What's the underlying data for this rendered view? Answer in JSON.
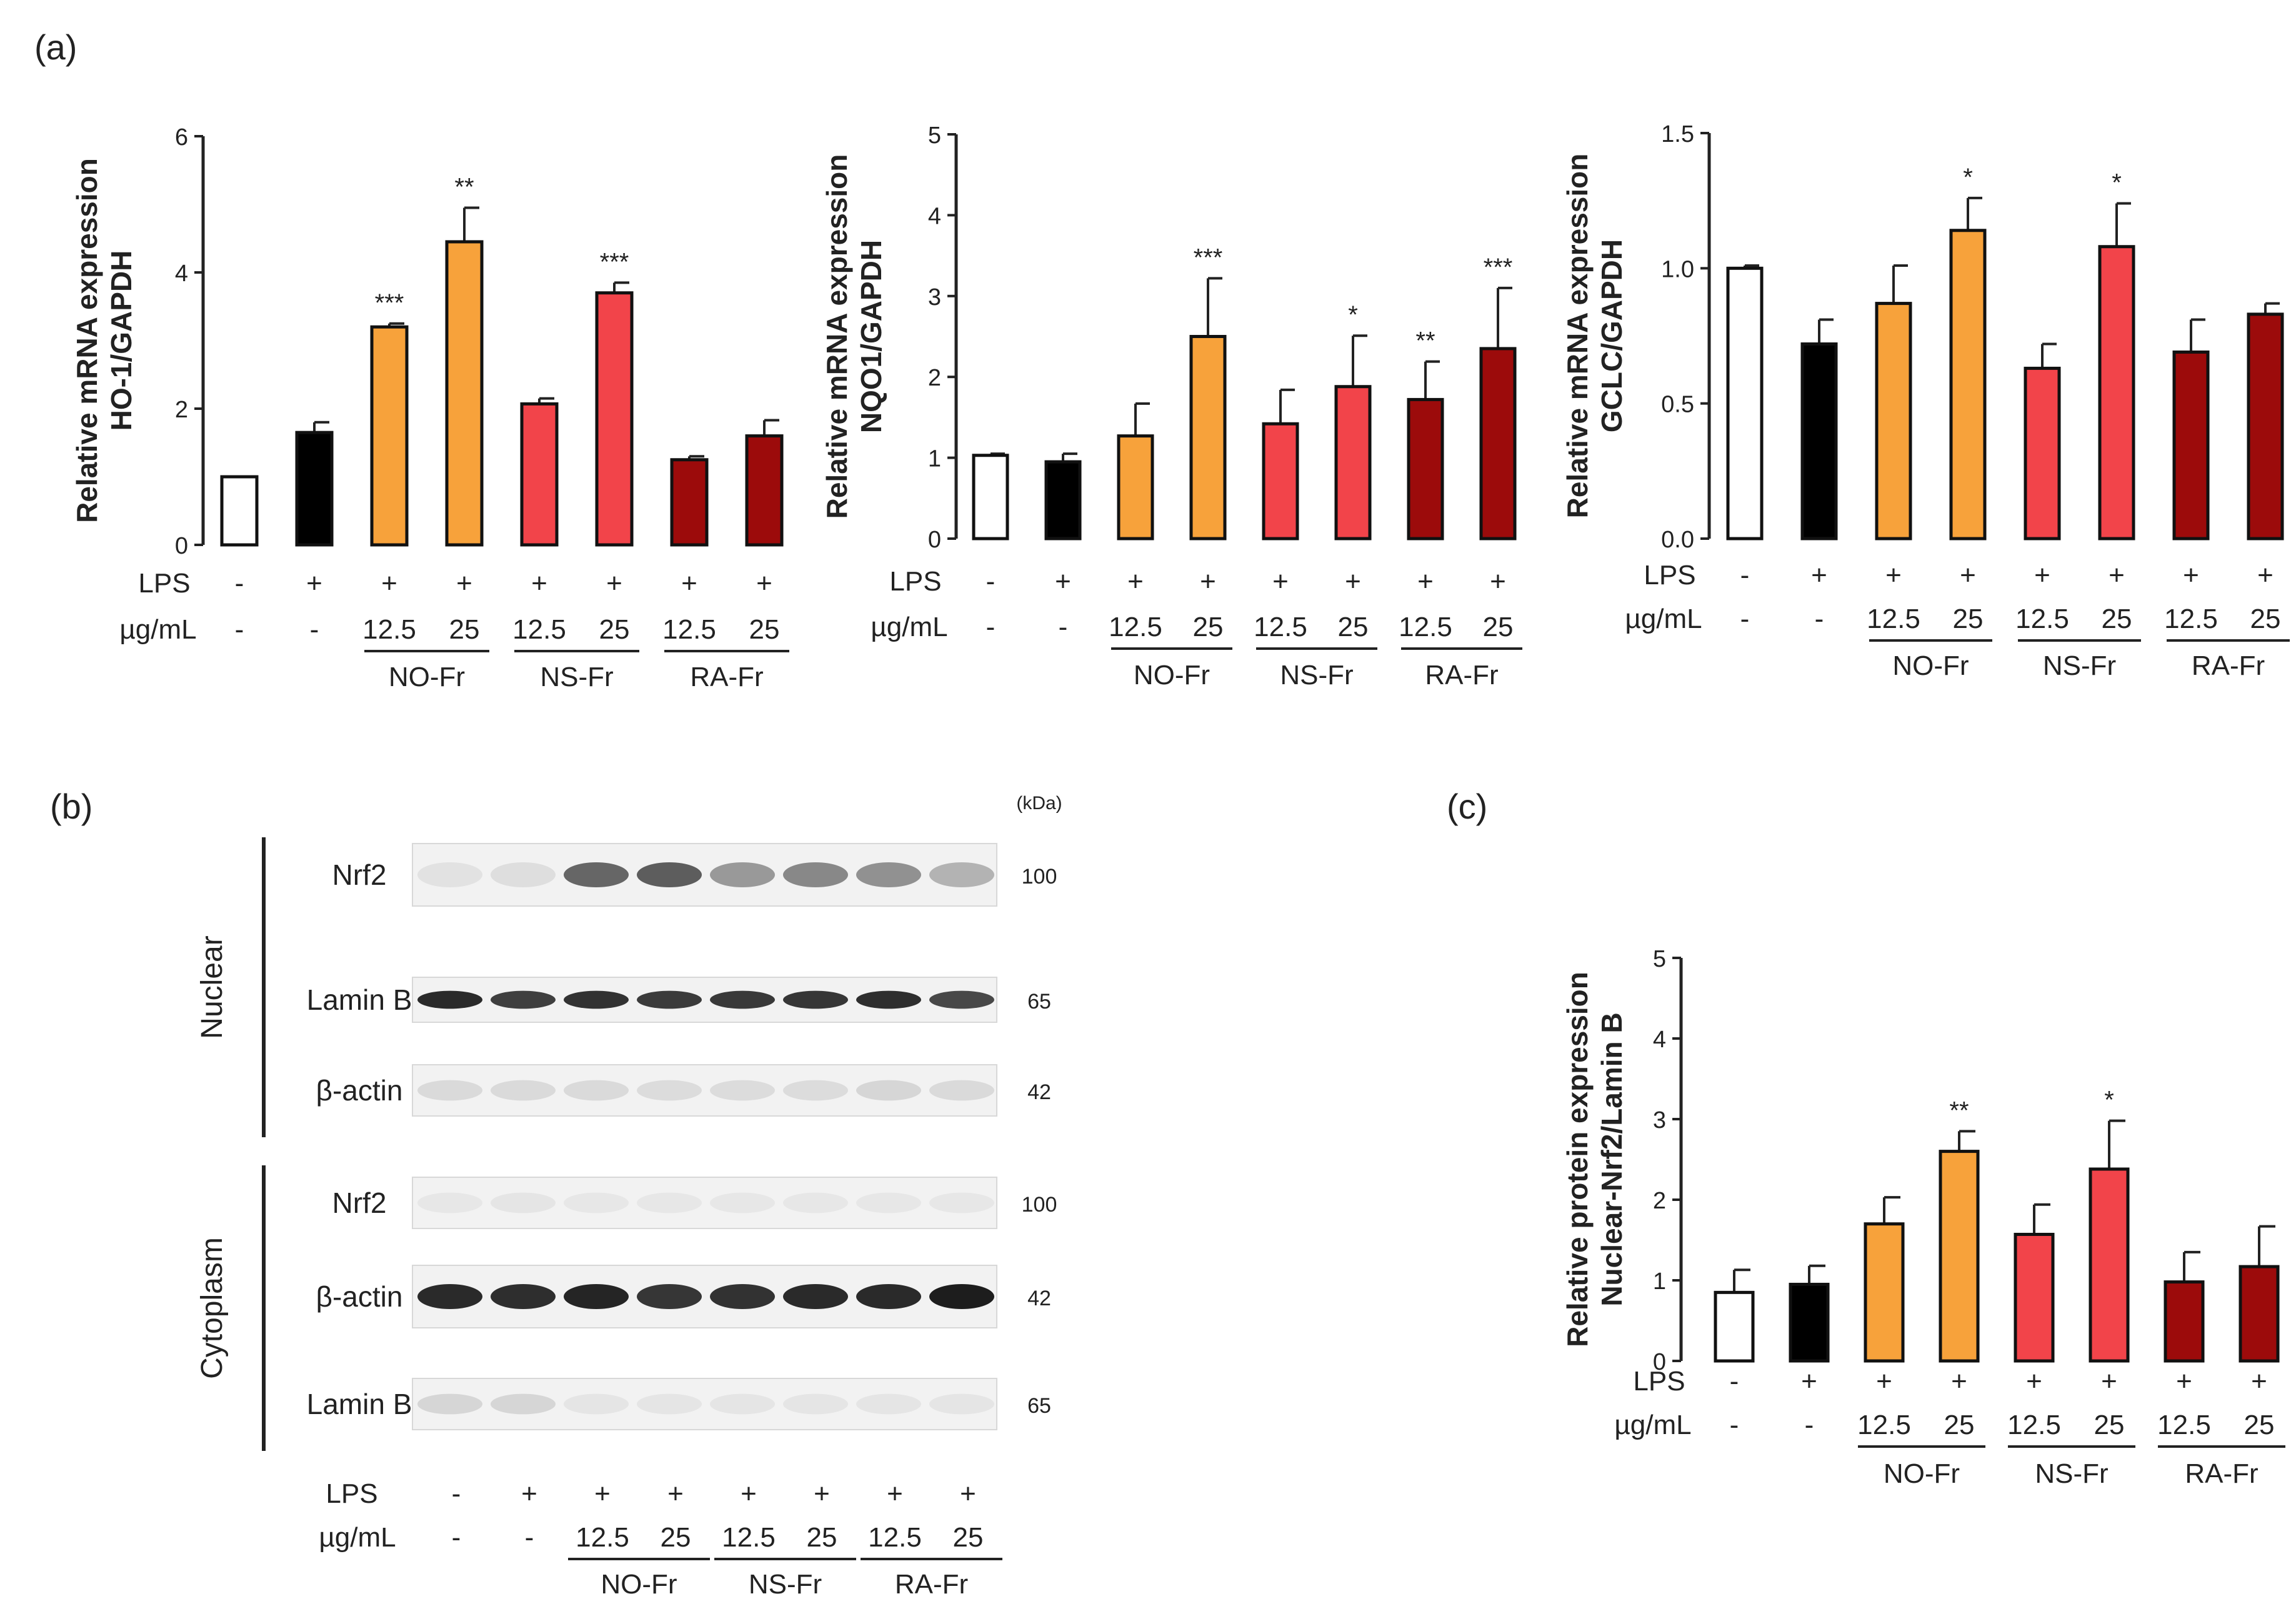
{
  "panel_labels": {
    "a": "(a)",
    "b": "(b)",
    "c": "(c)"
  },
  "colors": {
    "control": "#ffffff",
    "lps": "#000000",
    "no_fr": "#f7a23b",
    "ns_fr": "#f2444a",
    "ra_fr": "#9c0b0b"
  },
  "treatment_rows": {
    "lps_label": "LPS",
    "lps": [
      "-",
      "+",
      "+",
      "+",
      "+",
      "+",
      "+",
      "+"
    ],
    "dose_label": "µg/mL",
    "doses": [
      "-",
      "-",
      "12.5",
      "25",
      "12.5",
      "25",
      "12.5",
      "25"
    ],
    "groups": [
      "NO-Fr",
      "NS-Fr",
      "RA-Fr"
    ]
  },
  "chart_data": [
    {
      "id": "ho1",
      "type": "bar",
      "ylabel_line1": "Relative  mRNA expression",
      "ylabel_line2": "HO-1/GAPDH",
      "ylim": [
        0,
        6
      ],
      "yticks": [
        "0",
        "2",
        "4",
        "6"
      ],
      "ytick_values": [
        0,
        2,
        4,
        6
      ],
      "values": [
        1.0,
        1.65,
        3.2,
        4.45,
        2.07,
        3.7,
        1.25,
        1.6
      ],
      "errors": [
        0.0,
        0.15,
        0.05,
        0.5,
        0.08,
        0.15,
        0.05,
        0.23
      ],
      "significance": [
        "",
        "",
        "***",
        "**",
        "",
        "***",
        "",
        ""
      ]
    },
    {
      "id": "nqo1",
      "type": "bar",
      "ylabel_line1": "Relative  mRNA expression",
      "ylabel_line2": "NQO1/GAPDH",
      "ylim": [
        0,
        5
      ],
      "yticks": [
        "0",
        "1",
        "2",
        "3",
        "4",
        "5"
      ],
      "ytick_values": [
        0,
        1,
        2,
        3,
        4,
        5
      ],
      "values": [
        1.03,
        0.95,
        1.27,
        2.5,
        1.42,
        1.88,
        1.72,
        2.35
      ],
      "errors": [
        0.02,
        0.1,
        0.4,
        0.72,
        0.42,
        0.63,
        0.47,
        0.75
      ],
      "significance": [
        "",
        "",
        "",
        "***",
        "",
        "*",
        "**",
        "***"
      ]
    },
    {
      "id": "gclc",
      "type": "bar",
      "ylabel_line1": "Relative  mRNA expression",
      "ylabel_line2": "GCLC/GAPDH",
      "ylim": [
        0,
        1.5
      ],
      "yticks": [
        "0.0",
        "0.5",
        "1.0",
        "1.5"
      ],
      "ytick_values": [
        0,
        0.5,
        1.0,
        1.5
      ],
      "values": [
        1.0,
        0.72,
        0.87,
        1.14,
        0.63,
        1.08,
        0.69,
        0.83
      ],
      "errors": [
        0.01,
        0.09,
        0.14,
        0.12,
        0.09,
        0.16,
        0.12,
        0.04
      ],
      "significance": [
        "",
        "",
        "",
        "*",
        "",
        "*",
        "",
        ""
      ]
    },
    {
      "id": "nrf2",
      "type": "bar",
      "ylabel_line1": "Relative  protein expression",
      "ylabel_line2": "Nuclear-Nrf2/Lamin B",
      "ylim": [
        0,
        5
      ],
      "yticks": [
        "0",
        "1",
        "2",
        "3",
        "4",
        "5"
      ],
      "ytick_values": [
        0,
        1,
        2,
        3,
        4,
        5
      ],
      "values": [
        0.85,
        0.95,
        1.7,
        2.6,
        1.57,
        2.38,
        0.98,
        1.17
      ],
      "errors": [
        0.28,
        0.23,
        0.33,
        0.25,
        0.37,
        0.6,
        0.37,
        0.5
      ],
      "significance": [
        "",
        "",
        "",
        "**",
        "",
        "*",
        "",
        ""
      ]
    }
  ],
  "blot": {
    "kda_label": "(kDa)",
    "sections": [
      {
        "name": "Nuclear",
        "rows": [
          {
            "protein": "Nrf2",
            "kda": "100"
          },
          {
            "protein": "Lamin B",
            "kda": "65"
          },
          {
            "protein": "β-actin",
            "kda": "42"
          }
        ]
      },
      {
        "name": "Cytoplasm",
        "rows": [
          {
            "protein": "Nrf2",
            "kda": "100"
          },
          {
            "protein": "β-actin",
            "kda": "42"
          },
          {
            "protein": "Lamin B",
            "kda": "65"
          }
        ]
      }
    ],
    "band_intensity": {
      "nuc_nrf2": [
        0.04,
        0.06,
        0.62,
        0.66,
        0.38,
        0.46,
        0.42,
        0.26
      ],
      "nuc_laminb": [
        0.9,
        0.8,
        0.86,
        0.82,
        0.83,
        0.84,
        0.88,
        0.76
      ],
      "nuc_actin": [
        0.08,
        0.08,
        0.08,
        0.07,
        0.07,
        0.07,
        0.1,
        0.08
      ],
      "cyt_nrf2": [
        0.02,
        0.03,
        0.02,
        0.02,
        0.02,
        0.02,
        0.02,
        0.02
      ],
      "cyt_actin": [
        0.9,
        0.88,
        0.92,
        0.84,
        0.86,
        0.9,
        0.9,
        0.96
      ],
      "cyt_laminb": [
        0.1,
        0.1,
        0.03,
        0.03,
        0.03,
        0.03,
        0.03,
        0.03
      ]
    }
  }
}
